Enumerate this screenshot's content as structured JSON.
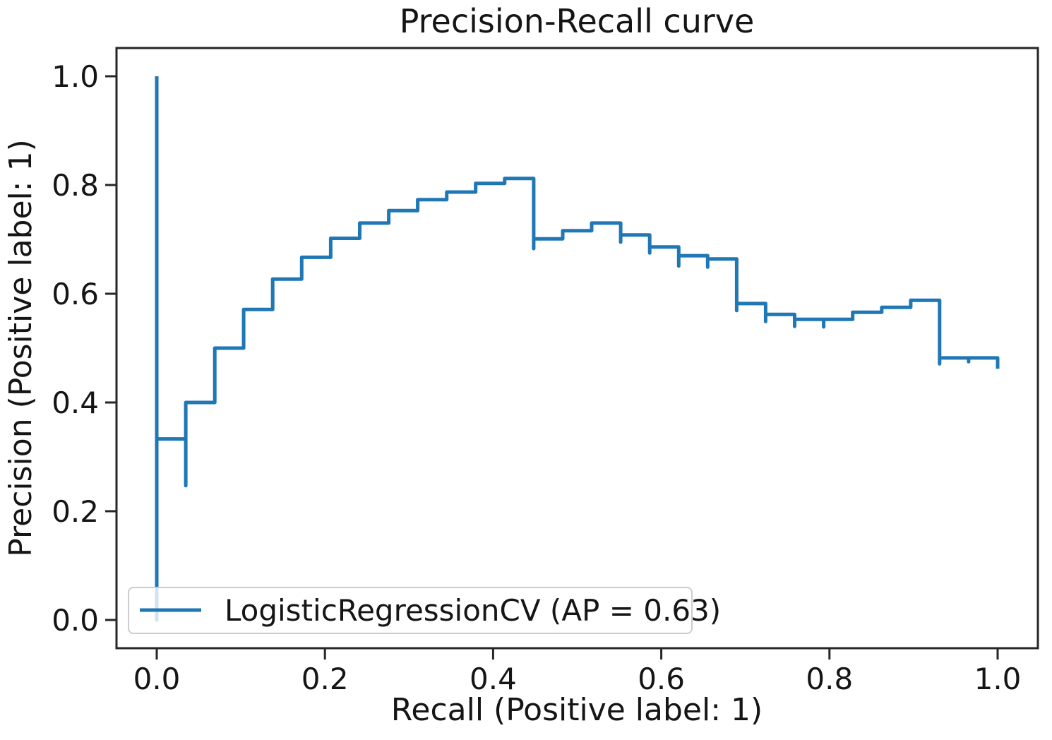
{
  "figure": {
    "background": "#ffffff",
    "frame_color": "#262626",
    "tick_color": "#262626"
  },
  "chart_data": {
    "type": "line",
    "drawstyle": "steps-post",
    "title": "Precision-Recall curve",
    "xlabel": "Recall (Positive label: 1)",
    "ylabel": "Precision (Positive label: 1)",
    "xlim": [
      -0.048,
      1.048
    ],
    "ylim": [
      -0.052,
      1.052
    ],
    "xticks": [
      0.0,
      0.2,
      0.4,
      0.6,
      0.8,
      1.0
    ],
    "yticks": [
      0.0,
      0.2,
      0.4,
      0.6,
      0.8,
      1.0
    ],
    "grid": false,
    "line_color": "#1f77b4",
    "legend": {
      "label": "LogisticRegressionCV (AP = 0.63)",
      "location": "lower left",
      "border_color": "#cccccc",
      "background": "rgba(255,255,255,0.8)"
    },
    "series": [
      {
        "name": "LogisticRegressionCV",
        "average_precision": 0.63,
        "points": [
          [
            0.0,
            1.0
          ],
          [
            0.0,
            0.0
          ],
          [
            0.0,
            0.333
          ],
          [
            0.0345,
            0.333
          ],
          [
            0.0345,
            0.247
          ],
          [
            0.0345,
            0.4
          ],
          [
            0.069,
            0.4
          ],
          [
            0.069,
            0.5
          ],
          [
            0.1034,
            0.5
          ],
          [
            0.1034,
            0.571
          ],
          [
            0.1379,
            0.571
          ],
          [
            0.1379,
            0.627
          ],
          [
            0.1724,
            0.627
          ],
          [
            0.1724,
            0.667
          ],
          [
            0.2069,
            0.667
          ],
          [
            0.2069,
            0.702
          ],
          [
            0.2414,
            0.702
          ],
          [
            0.2414,
            0.73
          ],
          [
            0.2759,
            0.73
          ],
          [
            0.2759,
            0.753
          ],
          [
            0.3103,
            0.753
          ],
          [
            0.3103,
            0.773
          ],
          [
            0.3448,
            0.773
          ],
          [
            0.3448,
            0.787
          ],
          [
            0.3793,
            0.787
          ],
          [
            0.3793,
            0.803
          ],
          [
            0.4138,
            0.803
          ],
          [
            0.4138,
            0.812
          ],
          [
            0.4483,
            0.812
          ],
          [
            0.4483,
            0.683
          ],
          [
            0.4483,
            0.701
          ],
          [
            0.4828,
            0.701
          ],
          [
            0.4828,
            0.716
          ],
          [
            0.5172,
            0.716
          ],
          [
            0.5172,
            0.73
          ],
          [
            0.5517,
            0.73
          ],
          [
            0.5517,
            0.695
          ],
          [
            0.5517,
            0.708
          ],
          [
            0.5862,
            0.708
          ],
          [
            0.5862,
            0.675
          ],
          [
            0.5862,
            0.686
          ],
          [
            0.6207,
            0.686
          ],
          [
            0.6207,
            0.651
          ],
          [
            0.6207,
            0.67
          ],
          [
            0.6552,
            0.67
          ],
          [
            0.6552,
            0.649
          ],
          [
            0.6552,
            0.664
          ],
          [
            0.6897,
            0.664
          ],
          [
            0.6897,
            0.569
          ],
          [
            0.6897,
            0.582
          ],
          [
            0.7241,
            0.582
          ],
          [
            0.7241,
            0.549
          ],
          [
            0.7241,
            0.562
          ],
          [
            0.7586,
            0.562
          ],
          [
            0.7586,
            0.54
          ],
          [
            0.7586,
            0.553
          ],
          [
            0.7931,
            0.553
          ],
          [
            0.7931,
            0.539
          ],
          [
            0.7931,
            0.553
          ],
          [
            0.8276,
            0.553
          ],
          [
            0.8276,
            0.566
          ],
          [
            0.8621,
            0.566
          ],
          [
            0.8621,
            0.575
          ],
          [
            0.8966,
            0.575
          ],
          [
            0.8966,
            0.588
          ],
          [
            0.931,
            0.588
          ],
          [
            0.931,
            0.471
          ],
          [
            0.931,
            0.482
          ],
          [
            0.9655,
            0.482
          ],
          [
            0.9655,
            0.475
          ],
          [
            0.9655,
            0.482
          ],
          [
            1.0,
            0.482
          ],
          [
            1.0,
            0.462
          ]
        ]
      }
    ]
  }
}
